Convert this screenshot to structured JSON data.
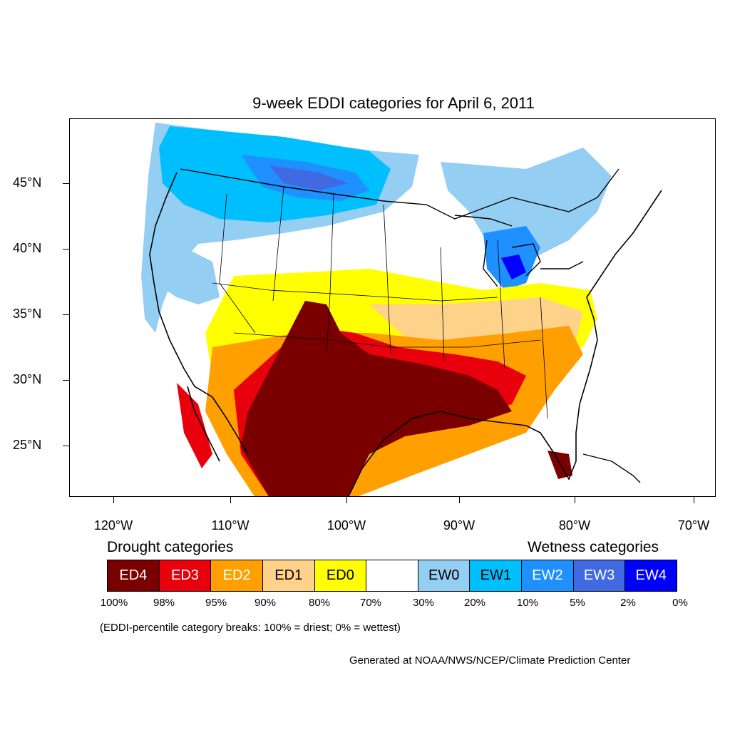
{
  "title": "9-week EDDI categories for April 6, 2011",
  "lat_labels": [
    "45°N",
    "40°N",
    "35°N",
    "30°N",
    "25°N"
  ],
  "lon_labels": [
    "120°W",
    "110°W",
    "100°W",
    "90°W",
    "80°W",
    "70°W"
  ],
  "legend": {
    "drought_title": "Drought categories",
    "wetness_title": "Wetness categories",
    "categories": [
      {
        "label": "ED4",
        "color": "#7a0000"
      },
      {
        "label": "ED3",
        "color": "#e8000c"
      },
      {
        "label": "ED2",
        "color": "#ff9f00"
      },
      {
        "label": "ED1",
        "color": "#ffd28a"
      },
      {
        "label": "ED0",
        "color": "#ffff00"
      },
      {
        "label": "",
        "color": "#ffffff"
      },
      {
        "label": "EW0",
        "color": "#94cef2"
      },
      {
        "label": "EW1",
        "color": "#00bfff"
      },
      {
        "label": "EW2",
        "color": "#1e90ff"
      },
      {
        "label": "EW3",
        "color": "#4169e1"
      },
      {
        "label": "EW4",
        "color": "#0000ff"
      }
    ],
    "breaks": [
      "100%",
      "98%",
      "95%",
      "90%",
      "80%",
      "70%",
      "30%",
      "20%",
      "10%",
      "5%",
      "2%",
      "0%"
    ]
  },
  "note": "(EDDI-percentile category breaks: 100% = driest; 0% = wettest)",
  "credit": "Generated at NOAA/NWS/NCEP/Climate Prediction Center"
}
